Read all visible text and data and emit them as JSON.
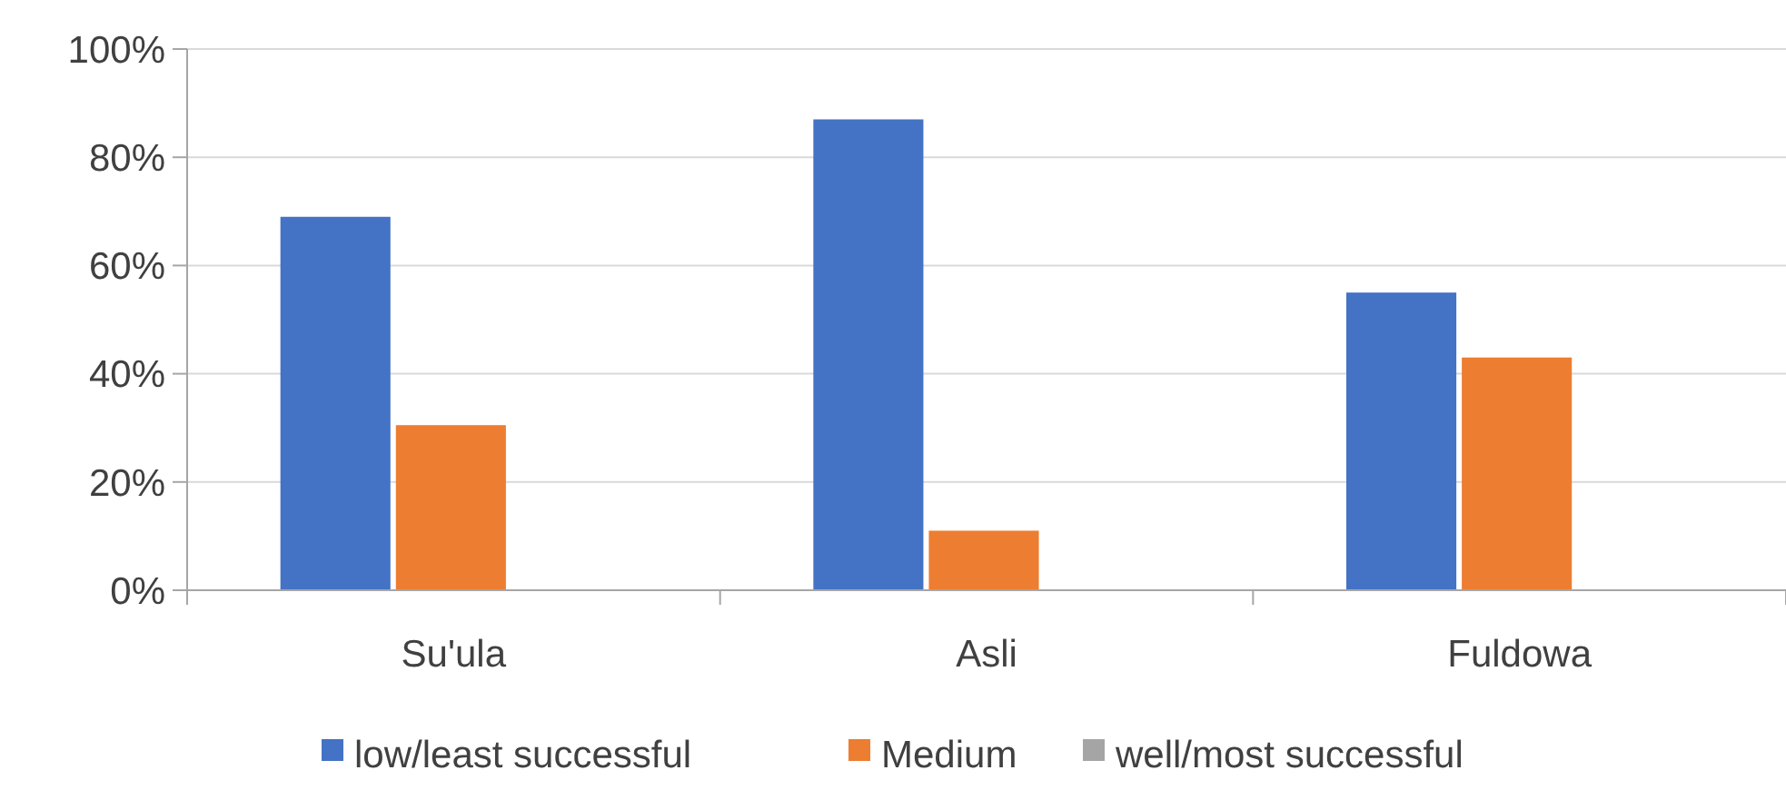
{
  "chart_data": {
    "type": "bar",
    "categories": [
      "Su'ula",
      "Asli",
      "Fuldowa"
    ],
    "series": [
      {
        "name": "low/least successful",
        "color": "#4472c4",
        "values": [
          69,
          87,
          55
        ]
      },
      {
        "name": "Medium",
        "color": "#ed7d31",
        "values": [
          30.5,
          11,
          43
        ]
      },
      {
        "name": "well/most successful",
        "color": "#a5a5a5",
        "values": [
          0,
          0,
          0
        ]
      }
    ],
    "ylim": [
      0,
      100
    ],
    "yticks": [
      {
        "value": 0,
        "label": "0%"
      },
      {
        "value": 20,
        "label": "20%"
      },
      {
        "value": 40,
        "label": "40%"
      },
      {
        "value": 60,
        "label": "60%"
      },
      {
        "value": 80,
        "label": "80%"
      },
      {
        "value": 100,
        "label": "100%"
      }
    ],
    "grid": "y",
    "legend": "bottom"
  }
}
